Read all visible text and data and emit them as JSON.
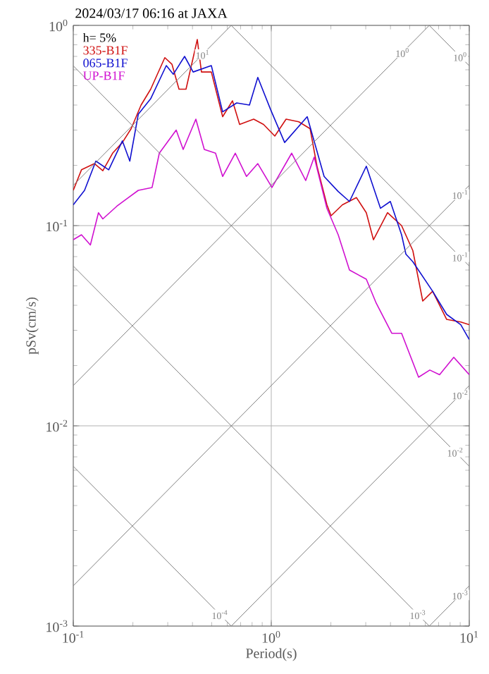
{
  "chart_data": {
    "type": "line",
    "title": "2024/03/17 06:16 at JAXA",
    "xlabel": "Period(s)",
    "ylabel": "pSv(cm/s)",
    "legend_title": "h= 5%",
    "log": "xy",
    "grid": true,
    "legend": "top left",
    "line_style": "solid",
    "xlim": [
      0.1,
      10
    ],
    "ylim": [
      0.001,
      1
    ],
    "xticks": [
      {
        "value": 0.1,
        "label": "10$^{-1}$"
      },
      {
        "value": 1,
        "label": "10$^{0}$"
      },
      {
        "value": 10,
        "label": "10$^{1}$"
      }
    ],
    "yticks": [
      {
        "value": 0.001,
        "label": "10$^{-3}$"
      },
      {
        "value": 0.01,
        "label": "10$^{-2}$"
      },
      {
        "value": 0.1,
        "label": "10$^{-1}$"
      },
      {
        "value": 1,
        "label": "10$^{0}$"
      }
    ],
    "series": [
      {
        "name": "335-B1F",
        "color": "#d01010",
        "x": [
          0.1,
          0.11,
          0.128,
          0.141,
          0.158,
          0.177,
          0.196,
          0.22,
          0.246,
          0.29,
          0.315,
          0.342,
          0.371,
          0.423,
          0.444,
          0.498,
          0.568,
          0.637,
          0.692,
          0.815,
          0.914,
          1.042,
          1.188,
          1.377,
          1.57,
          1.702,
          1.91,
          2.005,
          2.287,
          2.692,
          3.02,
          3.281,
          3.866,
          4.551,
          5.188,
          5.821,
          6.531,
          7.691,
          9.063,
          10
        ],
        "values": [
          0.15,
          0.19,
          0.204,
          0.188,
          0.23,
          0.26,
          0.305,
          0.4,
          0.48,
          0.69,
          0.64,
          0.48,
          0.48,
          0.85,
          0.585,
          0.585,
          0.35,
          0.42,
          0.32,
          0.34,
          0.32,
          0.28,
          0.34,
          0.33,
          0.305,
          0.198,
          0.127,
          0.112,
          0.127,
          0.138,
          0.116,
          0.085,
          0.116,
          0.1,
          0.075,
          0.042,
          0.047,
          0.034,
          0.033,
          0.032
        ]
      },
      {
        "name": "065-B1F",
        "color": "#1010d0",
        "x": [
          0.1,
          0.114,
          0.13,
          0.151,
          0.177,
          0.193,
          0.213,
          0.246,
          0.295,
          0.32,
          0.365,
          0.403,
          0.498,
          0.568,
          0.669,
          0.776,
          0.855,
          0.992,
          1.168,
          1.519,
          1.849,
          2.178,
          2.483,
          3.02,
          3.562,
          3.993,
          4.551,
          4.786,
          5.188,
          6.531,
          7.691,
          9.063,
          10
        ],
        "values": [
          0.127,
          0.15,
          0.21,
          0.19,
          0.265,
          0.21,
          0.36,
          0.43,
          0.63,
          0.57,
          0.7,
          0.585,
          0.63,
          0.37,
          0.41,
          0.4,
          0.55,
          0.38,
          0.26,
          0.35,
          0.176,
          0.148,
          0.132,
          0.198,
          0.122,
          0.132,
          0.09,
          0.072,
          0.066,
          0.047,
          0.036,
          0.032,
          0.027
        ]
      },
      {
        "name": "UP-B1F",
        "color": "#d010d0",
        "x": [
          0.1,
          0.11,
          0.122,
          0.134,
          0.141,
          0.166,
          0.186,
          0.213,
          0.25,
          0.272,
          0.331,
          0.359,
          0.416,
          0.459,
          0.523,
          0.568,
          0.658,
          0.75,
          0.855,
          1.008,
          1.268,
          1.493,
          1.648,
          1.91,
          2.178,
          2.483,
          3.02,
          3.388,
          4.06,
          4.551,
          5.546,
          6.32,
          7.081,
          8.351,
          10
        ],
        "values": [
          0.085,
          0.09,
          0.08,
          0.116,
          0.108,
          0.125,
          0.136,
          0.15,
          0.155,
          0.23,
          0.3,
          0.24,
          0.34,
          0.24,
          0.23,
          0.176,
          0.23,
          0.176,
          0.204,
          0.155,
          0.23,
          0.168,
          0.22,
          0.122,
          0.09,
          0.06,
          0.054,
          0.041,
          0.029,
          0.029,
          0.0175,
          0.019,
          0.018,
          0.022,
          0.018
        ]
      },
      {
        "color": "#808080",
        "x": [
          6.283,
          10
        ],
        "values": [
          1,
          0.628
        ]
      },
      {
        "color": "#808080",
        "x": [
          0.628,
          10
        ],
        "values": [
          1,
          0.0628
        ]
      },
      {
        "color": "#808080",
        "x": [
          0.1,
          10
        ],
        "values": [
          0.628,
          0.00628
        ]
      },
      {
        "color": "#808080",
        "x": [
          0.1,
          6.283
        ],
        "values": [
          0.0628,
          0.001
        ]
      },
      {
        "color": "#808080",
        "x": [
          0.1,
          0.628
        ],
        "values": [
          0.00628,
          0.001
        ]
      },
      {
        "color": "#808080",
        "x": [
          0.1,
          0.628
        ],
        "values": [
          0.159,
          1
        ]
      },
      {
        "color": "#808080",
        "x": [
          0.1,
          6.283
        ],
        "values": [
          0.0159,
          1
        ]
      },
      {
        "color": "#808080",
        "x": [
          0.1,
          10
        ],
        "values": [
          0.00159,
          0.159
        ]
      },
      {
        "color": "#808080",
        "x": [
          0.628,
          10
        ],
        "values": [
          0.001,
          0.0159
        ]
      },
      {
        "color": "#808080",
        "x": [
          6.283,
          10
        ],
        "values": [
          0.001,
          0.00159
        ]
      }
    ],
    "annotations": [
      {
        "text": "10$^{1}$",
        "x": 0.45,
        "y": 0.716
      },
      {
        "text": "10$^{0}$",
        "x": 4.6,
        "y": 0.732
      },
      {
        "text": "10$^{0}$",
        "x": 9,
        "y": 0.698
      },
      {
        "text": "10$^{-1}$",
        "x": 9,
        "y": 0.143
      },
      {
        "text": "10$^{-1}$",
        "x": 9,
        "y": 0.0698
      },
      {
        "text": "10$^{-2}$",
        "x": 9,
        "y": 0.0143
      },
      {
        "text": "10$^{-2}$",
        "x": 8.5,
        "y": 0.00739
      },
      {
        "text": "10$^{-4}$",
        "x": 0.55,
        "y": 0.00114
      },
      {
        "text": "10$^{-3}$",
        "x": 5.5,
        "y": 0.00114
      },
      {
        "text": "10$^{-3}$",
        "x": 9,
        "y": 0.00143
      }
    ]
  }
}
